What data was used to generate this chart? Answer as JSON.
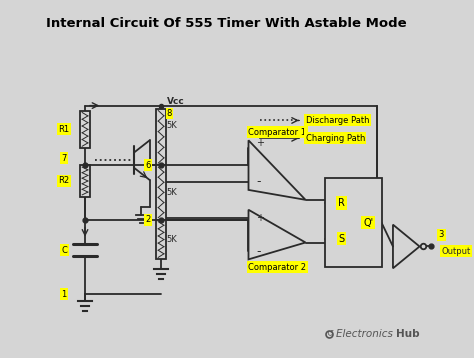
{
  "title": "Internal Circuit Of 555 Timer With Astable Mode",
  "bg_color": "#d5d5d5",
  "line_color": "#2a2a2a",
  "yellow_bg": "#ffff00",
  "title_fontsize": 9.5,
  "label_fontsize": 7.0,
  "small_fontsize": 6.0,
  "legend_discharge": "Discharge Path",
  "legend_charging": "Charging Path",
  "watermark_normal": "Electronics ",
  "watermark_bold": "Hub"
}
